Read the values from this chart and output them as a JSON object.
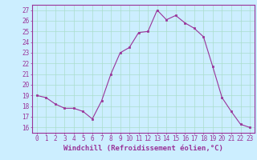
{
  "x": [
    0,
    1,
    2,
    3,
    4,
    5,
    6,
    7,
    8,
    9,
    10,
    11,
    12,
    13,
    14,
    15,
    16,
    17,
    18,
    19,
    20,
    21,
    22,
    23
  ],
  "y": [
    19.0,
    18.8,
    18.2,
    17.8,
    17.8,
    17.5,
    16.8,
    18.5,
    21.0,
    23.0,
    23.5,
    24.9,
    25.0,
    27.0,
    26.1,
    26.5,
    25.8,
    25.3,
    24.5,
    21.7,
    18.8,
    17.5,
    16.3,
    16.0
  ],
  "xlabel": "Windchill (Refroidissement éolien,°C)",
  "ylim": [
    15.5,
    27.5
  ],
  "xlim": [
    -0.5,
    23.5
  ],
  "yticks": [
    16,
    17,
    18,
    19,
    20,
    21,
    22,
    23,
    24,
    25,
    26,
    27
  ],
  "xticks": [
    0,
    1,
    2,
    3,
    4,
    5,
    6,
    7,
    8,
    9,
    10,
    11,
    12,
    13,
    14,
    15,
    16,
    17,
    18,
    19,
    20,
    21,
    22,
    23
  ],
  "line_color": "#993399",
  "marker_color": "#993399",
  "bg_color": "#cceeff",
  "grid_color": "#aaddcc",
  "axis_label_color": "#993399",
  "tick_label_color": "#993399",
  "spine_color": "#993399",
  "tick_font_size": 5.5,
  "xlabel_font_size": 6.5
}
